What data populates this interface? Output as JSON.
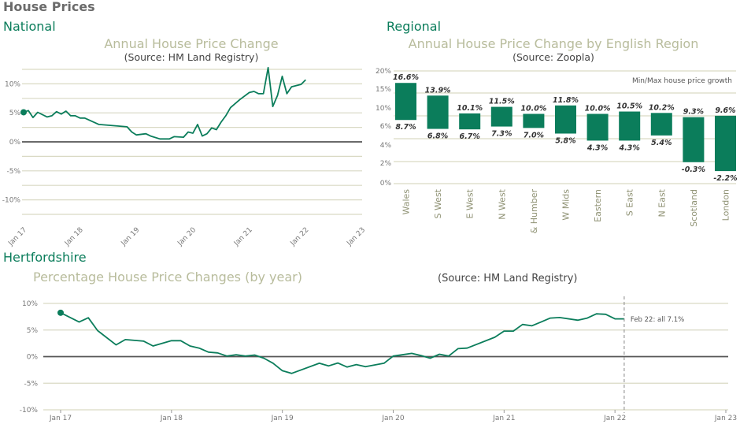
{
  "page": {
    "title": "House Prices",
    "national_heading": "National",
    "regional_heading": "Regional",
    "herts_heading": "Hertfordshire"
  },
  "colors": {
    "series": "#0b7d5b",
    "grid": "#d9d9c4",
    "title": "#b8bc9c",
    "zero_line": "#555555"
  },
  "chart_data": [
    {
      "type": "line",
      "title": "Annual House Price Change",
      "subtitle": "(Source: HM Land Registry)",
      "ylim": [
        -12.5,
        12.5
      ],
      "yticks": [
        10,
        5,
        0,
        -5,
        -10
      ],
      "ytick_labels": [
        "10%",
        "5%",
        "0%",
        "-5%",
        "-10%"
      ],
      "xticks": [
        "Jan 17",
        "Jan 18",
        "Jan 19",
        "Jan 20",
        "Jan 21",
        "Jan 22",
        "Jan 23"
      ],
      "xlim": [
        "2017-01",
        "2023-01"
      ],
      "grid": true,
      "x": [
        "2017-01",
        "2017-02",
        "2017-03",
        "2017-04",
        "2017-06",
        "2017-07",
        "2017-08",
        "2017-09",
        "2017-10",
        "2017-11",
        "2017-12",
        "2018-01",
        "2018-02",
        "2018-05",
        "2018-11",
        "2018-12",
        "2019-01",
        "2019-03",
        "2019-04",
        "2019-06",
        "2019-08",
        "2019-09",
        "2019-11",
        "2019-12",
        "2020-01",
        "2020-02",
        "2020-03",
        "2020-04",
        "2020-05",
        "2020-06",
        "2020-07",
        "2020-08",
        "2020-09",
        "2020-11",
        "2021-01",
        "2021-02",
        "2021-03",
        "2021-04",
        "2021-05",
        "2021-06",
        "2021-07",
        "2021-08",
        "2021-09",
        "2021-10",
        "2021-12",
        "2022-01"
      ],
      "values": [
        5.1,
        5.4,
        4.2,
        5.1,
        4.3,
        4.5,
        5.2,
        4.8,
        5.3,
        4.5,
        4.5,
        4.1,
        4.1,
        3.0,
        2.6,
        1.7,
        1.2,
        1.4,
        1.0,
        0.5,
        0.5,
        0.9,
        0.8,
        1.7,
        1.5,
        3.0,
        1.0,
        1.4,
        2.4,
        2.1,
        3.4,
        4.5,
        5.9,
        7.3,
        8.5,
        8.7,
        8.3,
        8.3,
        12.8,
        6.1,
        8.0,
        11.3,
        8.3,
        9.5,
        9.9,
        10.7
      ]
    },
    {
      "type": "bar",
      "title": "Annual House Price Change by English Region",
      "subtitle": "(Source: Zoopla)",
      "legend": "Min/Max house price growth",
      "legend_placement": "top-right",
      "ytick_labels": [
        "20%",
        "15%",
        "10%",
        "6%",
        "4%",
        "2%",
        "0%"
      ],
      "grid": true,
      "categories": [
        "Wales",
        "S West",
        "E West",
        "N West",
        "Y & Humber",
        "W Mids",
        "Eastern",
        "S East",
        "N East",
        "Scotland",
        "London"
      ],
      "max": [
        16.6,
        13.9,
        10.1,
        11.5,
        10.0,
        11.8,
        10.0,
        10.5,
        10.2,
        9.3,
        9.6
      ],
      "min": [
        8.7,
        6.8,
        6.7,
        7.3,
        7.0,
        5.8,
        4.3,
        4.3,
        5.4,
        -0.3,
        -2.2
      ],
      "max_labels": [
        "16.6%",
        "13.9%",
        "10.1%",
        "11.5%",
        "10.0%",
        "11.8%",
        "10.0%",
        "10.5%",
        "10.2%",
        "9.3%",
        "9.6%"
      ],
      "min_labels": [
        "8.7%",
        "6.8%",
        "6.7%",
        "7.3%",
        "7.0%",
        "5.8%",
        "4.3%",
        "4.3%",
        "5.4%",
        "-0.3%",
        "-2.2%"
      ]
    },
    {
      "type": "line",
      "title": "Percentage House Price Changes (by year)",
      "subtitle": "(Source: HM Land Registry)",
      "ylim": [
        -10,
        10
      ],
      "yticks": [
        10,
        5,
        0,
        -5,
        -10
      ],
      "ytick_labels": [
        "10%",
        "5%",
        "0%",
        "-5%",
        "-10%"
      ],
      "xticks": [
        "Jan 17",
        "Jan 18",
        "Jan 19",
        "Jan 20",
        "Jan 21",
        "Jan 22",
        "Jan 23"
      ],
      "xlim": [
        "2017-01",
        "2023-01"
      ],
      "grid": true,
      "annotation": {
        "x": "2022-02",
        "text": "Feb 22: all 7.1%"
      },
      "x": [
        "2017-01",
        "2017-03",
        "2017-04",
        "2017-05",
        "2017-07",
        "2017-08",
        "2017-10",
        "2017-11",
        "2018-01",
        "2018-02",
        "2018-03",
        "2018-04",
        "2018-05",
        "2018-06",
        "2018-07",
        "2018-08",
        "2018-09",
        "2018-10",
        "2018-11",
        "2018-12",
        "2019-01",
        "2019-02",
        "2019-05",
        "2019-06",
        "2019-07",
        "2019-08",
        "2019-09",
        "2019-10",
        "2019-12",
        "2020-01",
        "2020-03",
        "2020-04",
        "2020-05",
        "2020-06",
        "2020-07",
        "2020-08",
        "2020-09",
        "2020-12",
        "2021-01",
        "2021-02",
        "2021-03",
        "2021-04",
        "2021-05",
        "2021-06",
        "2021-07",
        "2021-09",
        "2021-10",
        "2021-11",
        "2021-12",
        "2022-01",
        "2022-02"
      ],
      "values": [
        8.25,
        6.5,
        7.3,
        4.9,
        2.2,
        3.2,
        2.9,
        2.0,
        3.0,
        3.0,
        2.0,
        1.6,
        0.85,
        0.7,
        0.1,
        0.35,
        0.1,
        0.3,
        -0.3,
        -1.25,
        -2.65,
        -3.15,
        -1.25,
        -1.75,
        -1.2,
        -1.95,
        -1.5,
        -1.9,
        -1.25,
        0.1,
        0.6,
        0.2,
        -0.3,
        0.45,
        0.1,
        1.5,
        1.6,
        3.65,
        4.8,
        4.8,
        6.05,
        5.8,
        6.5,
        7.25,
        7.35,
        6.85,
        7.25,
        8.05,
        7.95,
        7.1,
        7.1
      ]
    }
  ]
}
